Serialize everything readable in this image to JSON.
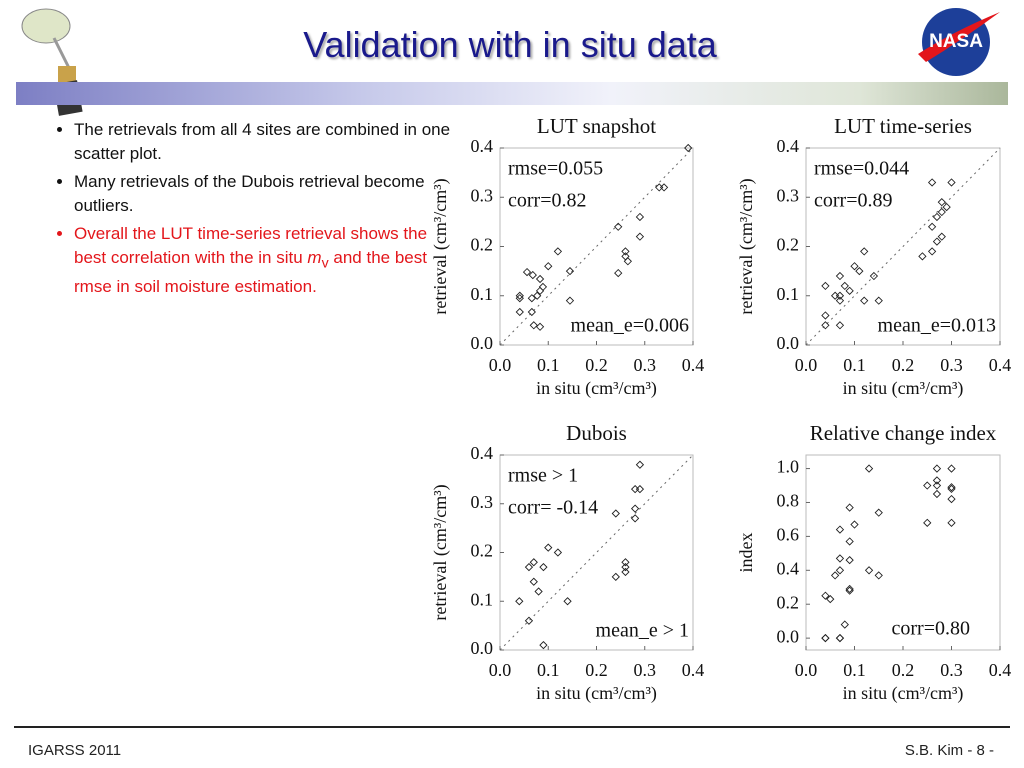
{
  "slide": {
    "title": "Validation with in situ data",
    "logo": "NASA",
    "bullets": [
      "The retrievals from all 4 sites are combined in one scatter plot.",
      "Many retrievals of the Dubois retrieval become outliers."
    ],
    "highlight": [
      "Overall the LUT time-series retrieval shows the best correlation with the in situ ",
      "m",
      "v",
      " and the best rmse in soil moisture estimation."
    ],
    "footer_left": "IGARSS 2011",
    "footer_right": "S.B. Kim - 8 -"
  },
  "chart_data": [
    {
      "type": "scatter",
      "title": "LUT snapshot",
      "x_label": "in situ (cm³/cm³)",
      "y_label": "retrieval (cm³/cm³)",
      "identity_line": true,
      "annotations": [
        "rmse=0.055",
        "corr=0.82",
        "mean_e=0.006"
      ],
      "xlim": [
        0,
        0.4
      ],
      "ylim": [
        0,
        0.4
      ],
      "xticks": [
        {
          "value": 0,
          "label": "0.0"
        },
        0.1,
        0.2,
        0.3,
        0.4
      ],
      "yticks": [
        {
          "value": 0,
          "label": "0.0"
        },
        0.1,
        0.2,
        0.3,
        0.4
      ],
      "series": [
        {
          "color": "#222222",
          "x": [
            0.39,
            0.33,
            0.34,
            0.245,
            0.29,
            0.29,
            0.26,
            0.26,
            0.265,
            0.245,
            0.12,
            0.1,
            0.145,
            0.056,
            0.068,
            0.083,
            0.089,
            0.083,
            0.041,
            0.041,
            0.066,
            0.077,
            0.145,
            0.041,
            0.066,
            0.07,
            0.083
          ],
          "values": [
            0.4,
            0.32,
            0.32,
            0.24,
            0.26,
            0.22,
            0.19,
            0.18,
            0.17,
            0.146,
            0.19,
            0.16,
            0.15,
            0.148,
            0.142,
            0.134,
            0.118,
            0.11,
            0.1,
            0.095,
            0.095,
            0.1,
            0.09,
            0.067,
            0.067,
            0.04,
            0.037
          ]
        }
      ]
    },
    {
      "type": "scatter",
      "title": "LUT time-series",
      "x_label": "in situ (cm³/cm³)",
      "y_label": "retrieval (cm³/cm³)",
      "identity_line": true,
      "annotations": [
        "rmse=0.044",
        "corr=0.89",
        "mean_e=0.013"
      ],
      "xlim": [
        0,
        0.4
      ],
      "ylim": [
        0,
        0.4
      ],
      "xticks": [
        {
          "value": 0,
          "label": "0.0"
        },
        0.1,
        0.2,
        0.3,
        0.4
      ],
      "yticks": [
        {
          "value": 0,
          "label": "0.0"
        },
        0.1,
        0.2,
        0.3,
        0.4
      ],
      "series": [
        {
          "color": "#222222",
          "x": [
            0.26,
            0.3,
            0.28,
            0.29,
            0.28,
            0.27,
            0.26,
            0.27,
            0.28,
            0.26,
            0.24,
            0.12,
            0.1,
            0.11,
            0.07,
            0.14,
            0.04,
            0.08,
            0.09,
            0.06,
            0.07,
            0.07,
            0.12,
            0.15,
            0.04,
            0.04,
            0.07
          ],
          "values": [
            0.33,
            0.33,
            0.29,
            0.28,
            0.27,
            0.26,
            0.24,
            0.21,
            0.22,
            0.19,
            0.18,
            0.19,
            0.16,
            0.15,
            0.14,
            0.14,
            0.12,
            0.12,
            0.11,
            0.1,
            0.1,
            0.09,
            0.09,
            0.09,
            0.06,
            0.04,
            0.04
          ]
        }
      ]
    },
    {
      "type": "scatter",
      "title": "Dubois",
      "x_label": "in situ (cm³/cm³)",
      "y_label": "retrieval (cm³/cm³)",
      "identity_line": true,
      "annotations": [
        "rmse > 1",
        "corr= -0.14",
        "mean_e > 1"
      ],
      "xlim": [
        0,
        0.4
      ],
      "ylim": [
        0,
        0.4
      ],
      "xticks": [
        {
          "value": 0,
          "label": "0.0"
        },
        0.1,
        0.2,
        0.3,
        0.4
      ],
      "yticks": [
        {
          "value": 0,
          "label": "0.0"
        },
        0.1,
        0.2,
        0.3,
        0.4
      ],
      "series": [
        {
          "color": "#222222",
          "x": [
            0.29,
            0.28,
            0.29,
            0.28,
            0.28,
            0.24,
            0.26,
            0.26,
            0.26,
            0.24,
            0.1,
            0.12,
            0.06,
            0.07,
            0.09,
            0.07,
            0.08,
            0.14,
            0.04,
            0.06,
            0.09
          ],
          "values": [
            0.38,
            0.33,
            0.33,
            0.29,
            0.27,
            0.28,
            0.18,
            0.17,
            0.16,
            0.15,
            0.21,
            0.2,
            0.17,
            0.18,
            0.17,
            0.14,
            0.12,
            0.1,
            0.1,
            0.06,
            0.01
          ]
        }
      ]
    },
    {
      "type": "scatter",
      "title": "Relative change index",
      "x_label": "in situ (cm³/cm³)",
      "y_label": "index",
      "identity_line": false,
      "annotations": [
        "corr=0.80"
      ],
      "xlim": [
        0,
        0.4
      ],
      "ylim": [
        -0.07,
        1.08
      ],
      "xticks": [
        {
          "value": 0,
          "label": "0.0"
        },
        0.1,
        0.2,
        0.3,
        0.4
      ],
      "yticks": [
        {
          "value": 0,
          "label": "0.0"
        },
        0.2,
        0.4,
        0.6,
        0.8,
        {
          "value": 1,
          "label": "1.0"
        }
      ],
      "series": [
        {
          "color": "#222222",
          "x": [
            0.13,
            0.27,
            0.3,
            0.25,
            0.27,
            0.27,
            0.3,
            0.3,
            0.27,
            0.3,
            0.09,
            0.15,
            0.25,
            0.3,
            0.1,
            0.07,
            0.09,
            0.07,
            0.09,
            0.07,
            0.06,
            0.13,
            0.15,
            0.09,
            0.09,
            0.04,
            0.05,
            0.08,
            0.04,
            0.04,
            0.07,
            0.07
          ],
          "values": [
            1.0,
            1.0,
            1.0,
            0.9,
            0.93,
            0.9,
            0.88,
            0.89,
            0.85,
            0.82,
            0.77,
            0.74,
            0.68,
            0.68,
            0.67,
            0.64,
            0.57,
            0.47,
            0.46,
            0.4,
            0.37,
            0.4,
            0.37,
            0.29,
            0.28,
            0.25,
            0.23,
            0.08,
            0,
            0,
            0,
            0
          ]
        }
      ]
    }
  ]
}
